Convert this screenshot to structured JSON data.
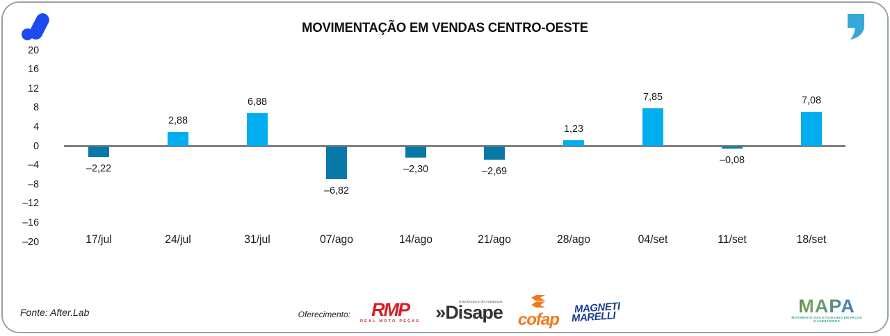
{
  "header": {
    "title": "MOVIMENTAÇÃO EM VENDAS CENTRO-OESTE"
  },
  "chart_data": {
    "type": "bar",
    "title": "MOVIMENTAÇÃO EM VENDAS CENTRO-OESTE",
    "categories": [
      "17/jul",
      "24/jul",
      "31/jul",
      "07/ago",
      "14/ago",
      "21/ago",
      "28/ago",
      "04/set",
      "11/set",
      "18/set"
    ],
    "values": [
      -2.22,
      2.88,
      6.88,
      -6.82,
      -2.3,
      -2.69,
      1.23,
      7.85,
      -0.08,
      7.08
    ],
    "value_labels": [
      "-2,22",
      "2,88",
      "6,88",
      "-6,82",
      "-2,30",
      "-2,69",
      "1,23",
      "7,85",
      "-0,08",
      "7,08"
    ],
    "y_ticks": [
      20,
      16,
      12,
      8,
      4,
      0,
      -4,
      -8,
      -12,
      -16,
      -20
    ],
    "ylim": [
      -20,
      20
    ],
    "xlabel": "",
    "ylabel": "",
    "grid": false,
    "legend": "none",
    "colors": {
      "positive": "#00AEEF",
      "negative": "#0878A8",
      "axis_line": "#7F7F7F"
    }
  },
  "branding": {
    "afterlab_blue": "#1C49F0",
    "quote_cyan": "#35A9D6"
  },
  "footer": {
    "source": "Fonte: After.Lab",
    "sponsor_label": "Oferecimento:",
    "sponsors": [
      {
        "name": "RMP",
        "subtitle": "REAL MOTO PEÇAS"
      },
      {
        "name": "Disape",
        "prefix": "»",
        "subtitle": "Distribuidora de Autopeças"
      },
      {
        "name": "cofap"
      },
      {
        "name_line1": "MAGNETI",
        "name_line2": "MARELLI"
      }
    ],
    "mapa": {
      "name": "MAPA",
      "tagline": "MOVIMENTO DAS ATIVIDADES EM PEÇAS E ACESSÓRIOS"
    }
  }
}
